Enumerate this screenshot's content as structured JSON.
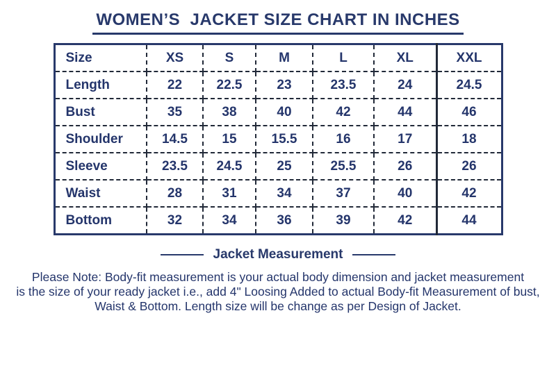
{
  "title": "WOMEN’S  JACKET SIZE CHART IN INCHES",
  "table": {
    "headers": [
      "Size",
      "XS",
      "S",
      "M",
      "L",
      "XL",
      "XXL"
    ],
    "rows": [
      {
        "label": "Length",
        "values": [
          "22",
          "22.5",
          "23",
          "23.5",
          "24",
          "24.5"
        ]
      },
      {
        "label": "Bust",
        "values": [
          "35",
          "38",
          "40",
          "42",
          "44",
          "46"
        ]
      },
      {
        "label": "Shoulder",
        "values": [
          "14.5",
          "15",
          "15.5",
          "16",
          "17",
          "18"
        ]
      },
      {
        "label": "Sleeve",
        "values": [
          "23.5",
          "24.5",
          "25",
          "25.5",
          "26",
          "26"
        ]
      },
      {
        "label": "Waist",
        "values": [
          "28",
          "31",
          "34",
          "37",
          "40",
          "42"
        ]
      },
      {
        "label": "Bottom",
        "values": [
          "32",
          "34",
          "36",
          "39",
          "42",
          "44"
        ]
      }
    ]
  },
  "section_label": "Jacket Measurement",
  "note": "Please Note: Body-fit measurement is your actual body dimension and jacket measurement\nis the size of your ready jacket i.e., add 4\" Loosing Added to actual Body-fit Measurement of bust,\nWaist & Bottom. Length size will be change as per Design of Jacket.",
  "colors": {
    "text_navy": "#28396b",
    "outer_border": "#28396b",
    "inner_dash": "#212938",
    "background": "#ffffff"
  },
  "chart_data": {
    "type": "table",
    "title": "WOMEN'S JACKET SIZE CHART IN INCHES",
    "units": "inches",
    "columns": [
      "Size",
      "XS",
      "S",
      "M",
      "L",
      "XL",
      "XXL"
    ],
    "rows": [
      [
        "Length",
        22,
        22.5,
        23,
        23.5,
        24,
        24.5
      ],
      [
        "Bust",
        35,
        38,
        40,
        42,
        44,
        46
      ],
      [
        "Shoulder",
        14.5,
        15,
        15.5,
        16,
        17,
        18
      ],
      [
        "Sleeve",
        23.5,
        24.5,
        25,
        25.5,
        26,
        26
      ],
      [
        "Waist",
        28,
        31,
        34,
        37,
        40,
        42
      ],
      [
        "Bottom",
        32,
        34,
        36,
        39,
        42,
        44
      ]
    ],
    "footnote_heading": "Jacket Measurement",
    "footnote": "Please Note: Body-fit measurement is your actual body dimension and jacket measurement is the size of your ready jacket i.e., add 4\" Loosing Added to actual Body-fit Measurement of bust, Waist & Bottom. Length size will be change as per Design of Jacket."
  }
}
